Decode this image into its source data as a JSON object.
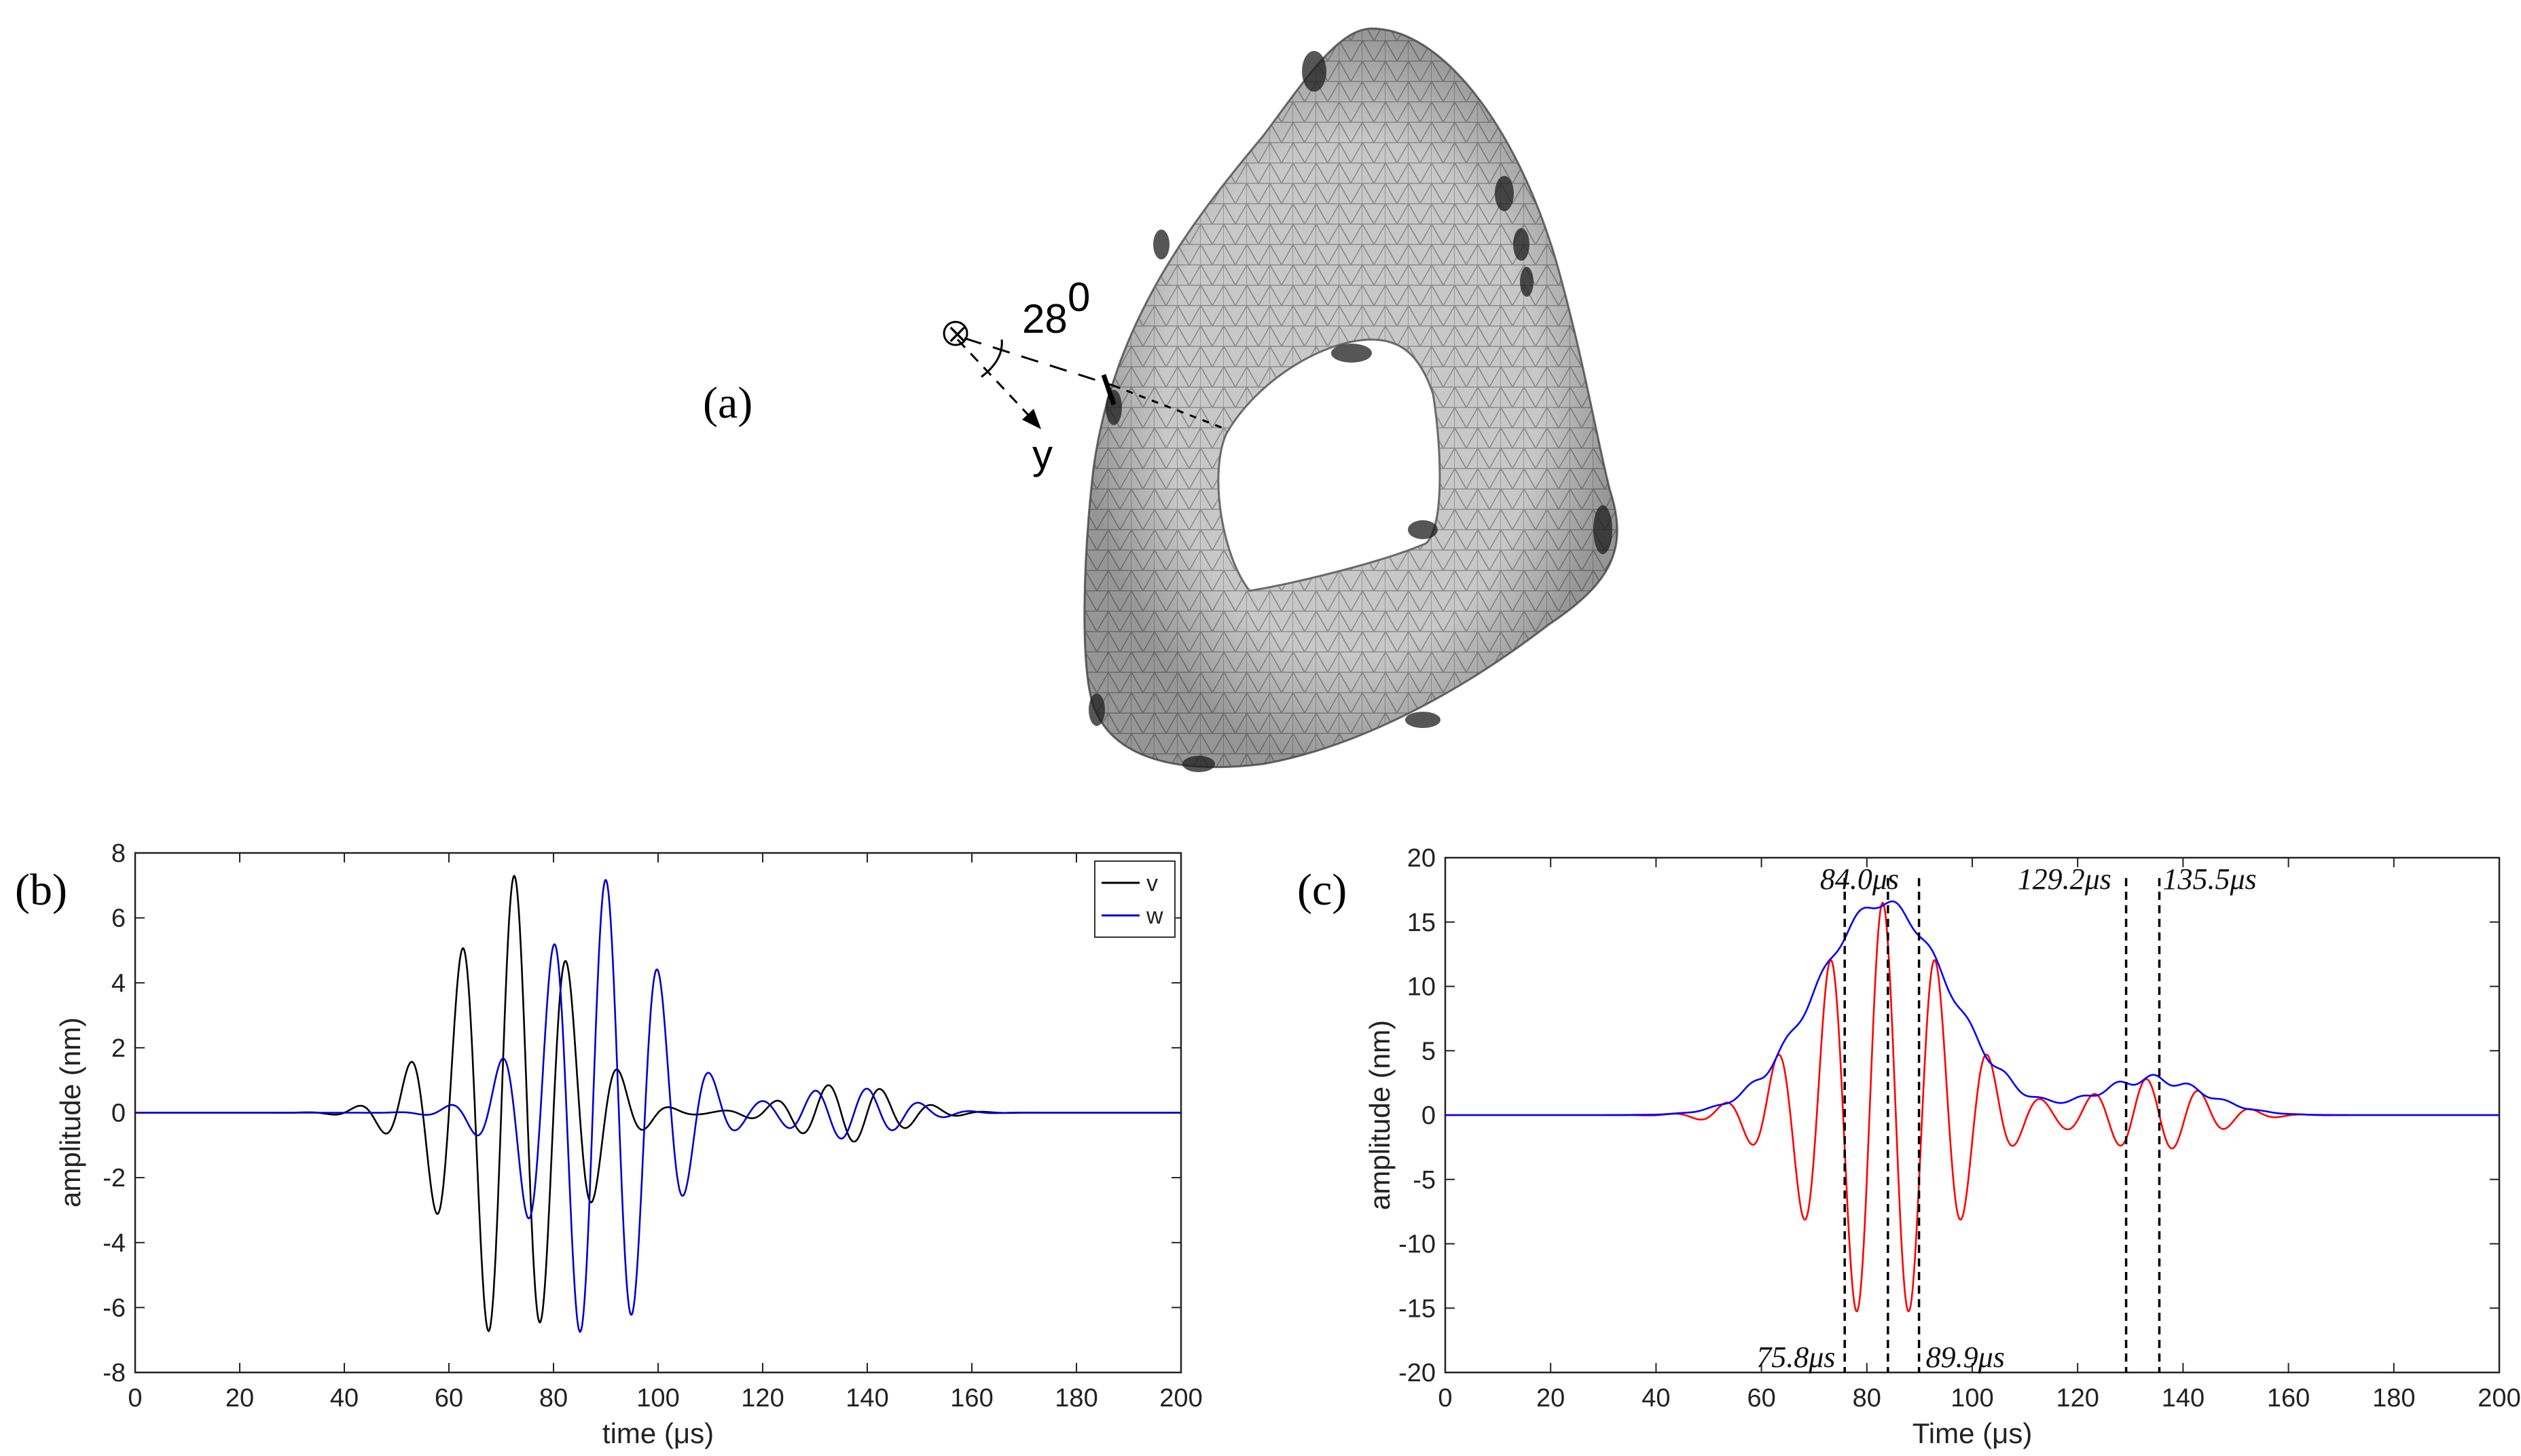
{
  "figure": {
    "panel_a": {
      "label": "(a)",
      "angle_text": "28",
      "angle_superscript": "0",
      "axis_label": "y",
      "origin_symbol": "⊗",
      "mesh_color": "#b4b4b4"
    },
    "panel_b": {
      "label": "(b)"
    },
    "panel_c": {
      "label": "(c)"
    }
  },
  "chart_data": [
    {
      "id": "b",
      "type": "line",
      "title": "",
      "xlabel": "time (μs)",
      "ylabel": "amplitude (nm)",
      "xlim": [
        0,
        200
      ],
      "ylim": [
        -8,
        8
      ],
      "xticks": [
        0,
        20,
        40,
        60,
        80,
        100,
        120,
        140,
        160,
        180,
        200
      ],
      "yticks": [
        -8,
        -6,
        -4,
        -2,
        0,
        2,
        4,
        6,
        8
      ],
      "legend": {
        "position": "top-right",
        "entries": [
          "v",
          "w"
        ]
      },
      "series": [
        {
          "name": "v",
          "color": "#000000",
          "model": "tone-burst",
          "carrier_freq_MHz": 0.1,
          "packets": [
            {
              "center_us": 72,
              "sigma_us": 11,
              "amplitude_nm": 7.3
            },
            {
              "center_us": 136,
              "sigma_us": 10,
              "amplitude_nm": 0.9
            }
          ]
        },
        {
          "name": "w",
          "color": "#0000cc",
          "model": "tone-burst",
          "carrier_freq_MHz": 0.1,
          "packets": [
            {
              "center_us": 89,
              "sigma_us": 11,
              "amplitude_nm": 7.2
            },
            {
              "center_us": 136,
              "sigma_us": 10,
              "amplitude_nm": 0.8
            }
          ]
        }
      ]
    },
    {
      "id": "c",
      "type": "line",
      "title": "",
      "xlabel": "Time (μs)",
      "ylabel": "amplitude (nm)",
      "xlim": [
        0,
        200
      ],
      "ylim": [
        -20,
        20
      ],
      "xticks": [
        0,
        20,
        40,
        60,
        80,
        100,
        120,
        140,
        160,
        180,
        200
      ],
      "yticks": [
        -20,
        -15,
        -10,
        -5,
        0,
        5,
        10,
        15,
        20
      ],
      "series": [
        {
          "name": "signal",
          "color": "#ff0000",
          "model": "rectified-burst",
          "carrier_freq_MHz": 0.1,
          "packets": [
            {
              "center_us": 83,
              "sigma_us": 12.5,
              "amplitude_nm": 16.5
            },
            {
              "center_us": 134,
              "sigma_us": 10,
              "amplitude_nm": 2.8
            }
          ]
        },
        {
          "name": "envelope",
          "color": "#0000ff",
          "model": "envelope",
          "packets": [
            {
              "center_us": 83,
              "sigma_us": 12.5,
              "amplitude_nm": 16.5
            },
            {
              "center_us": 134,
              "sigma_us": 10,
              "amplitude_nm": 2.8
            }
          ]
        }
      ],
      "markers": [
        {
          "x": 75.8,
          "label": "75.8μs",
          "label_pos": "bottom"
        },
        {
          "x": 84.0,
          "label": "84.0μs",
          "label_pos": "top"
        },
        {
          "x": 89.9,
          "label": "89.9μs",
          "label_pos": "bottom"
        },
        {
          "x": 129.2,
          "label": "129.2μs",
          "label_pos": "top"
        },
        {
          "x": 135.5,
          "label": "135.5μs",
          "label_pos": "top"
        }
      ]
    }
  ]
}
